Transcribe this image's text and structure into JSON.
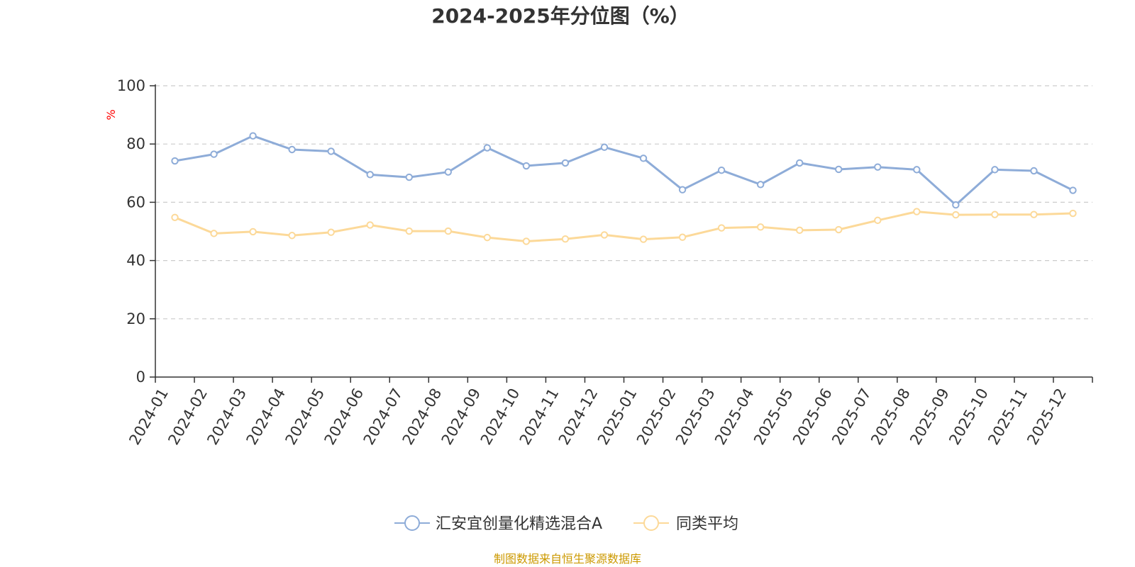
{
  "chart_data": {
    "type": "line",
    "title": "2024-2025年分位图（%）",
    "ylabel": "%",
    "xlabel": "",
    "ylim": [
      0,
      100
    ],
    "yticks": [
      0,
      20,
      40,
      60,
      80,
      100
    ],
    "grid": true,
    "legend_position": "bottom-center",
    "categories": [
      "2024-01",
      "2024-02",
      "2024-03",
      "2024-04",
      "2024-05",
      "2024-06",
      "2024-07",
      "2024-08",
      "2024-09",
      "2024-10",
      "2024-11",
      "2024-12",
      "2025-01",
      "2025-02",
      "2025-03",
      "2025-04",
      "2025-05",
      "2025-06",
      "2025-07",
      "2025-08",
      "2025-09",
      "2025-10",
      "2025-11",
      "2025-12"
    ],
    "series": [
      {
        "name": "汇安宜创量化精选混合A",
        "color": "#8eacd8",
        "values": [
          74.2,
          76.5,
          82.8,
          78.1,
          77.5,
          69.5,
          68.6,
          70.4,
          78.7,
          72.5,
          73.5,
          78.9,
          75.1,
          64.3,
          71.0,
          66.1,
          73.5,
          71.3,
          72.1,
          71.2,
          59.1,
          71.2,
          70.8,
          64.1
        ]
      },
      {
        "name": "同类平均",
        "color": "#fcd999",
        "values": [
          54.8,
          49.3,
          49.9,
          48.6,
          49.7,
          52.2,
          50.1,
          50.1,
          47.9,
          46.6,
          47.4,
          48.8,
          47.3,
          48.0,
          51.2,
          51.5,
          50.4,
          50.6,
          53.8,
          56.8,
          55.7,
          55.8,
          55.8,
          56.2
        ]
      }
    ],
    "source": "制图数据来自恒生聚源数据库",
    "colors": {
      "axis": "#333333",
      "grid": "#cccccc",
      "unit": "#ff0000",
      "source": "#cc9900",
      "text": "#333333"
    }
  }
}
